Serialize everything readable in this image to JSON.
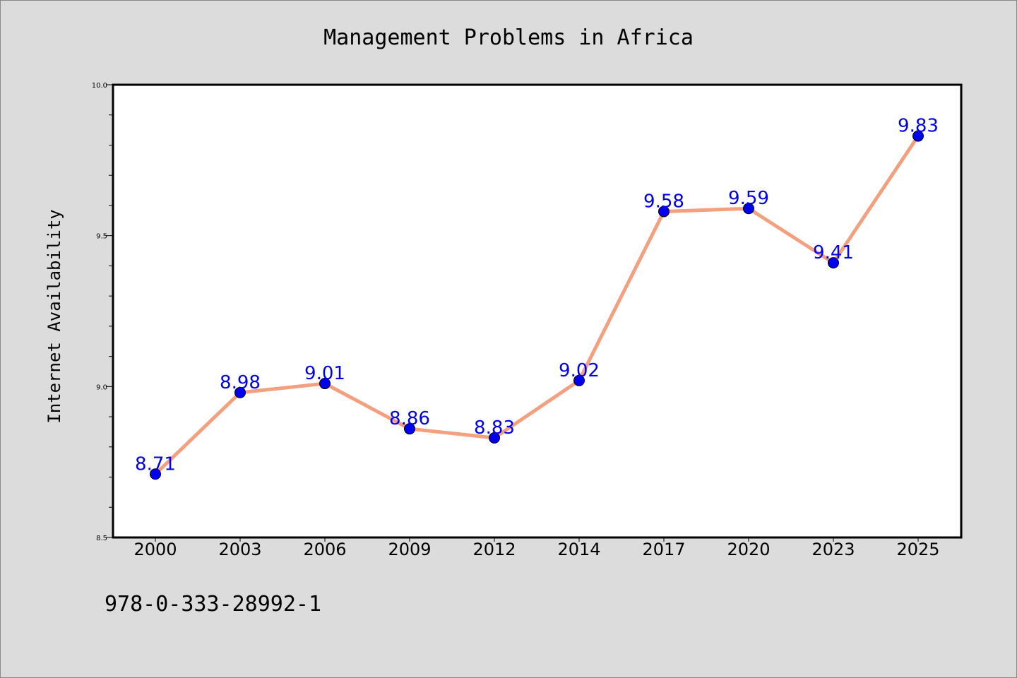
{
  "chart_data": {
    "type": "line",
    "title": "Management Problems in Africa",
    "xlabel": "",
    "ylabel": "Internet Availability",
    "categories": [
      "2000",
      "2003",
      "2006",
      "2009",
      "2012",
      "2014",
      "2017",
      "2020",
      "2023",
      "2025"
    ],
    "series": [
      {
        "values": [
          8.71,
          8.98,
          9.01,
          8.86,
          8.83,
          9.02,
          9.58,
          9.59,
          9.41,
          9.83
        ],
        "labels": [
          "8.71",
          "8.98",
          "9.01",
          "8.86",
          "8.83",
          "9.02",
          "9.58",
          "9.59",
          "9.41",
          "9.83"
        ]
      }
    ],
    "ylim": [
      8.5,
      10.0
    ],
    "yticks": [
      "8.5",
      "9.0",
      "9.5",
      "10.0"
    ],
    "grid": false,
    "legend": "none",
    "colors": {
      "line": "#f4a07e",
      "marker": "#0000ee",
      "data_label": "#0000ee",
      "background": "#dcdcdc",
      "plot_background": "#ffffff"
    }
  },
  "footer": {
    "isbn": "978-0-333-28992-1"
  }
}
